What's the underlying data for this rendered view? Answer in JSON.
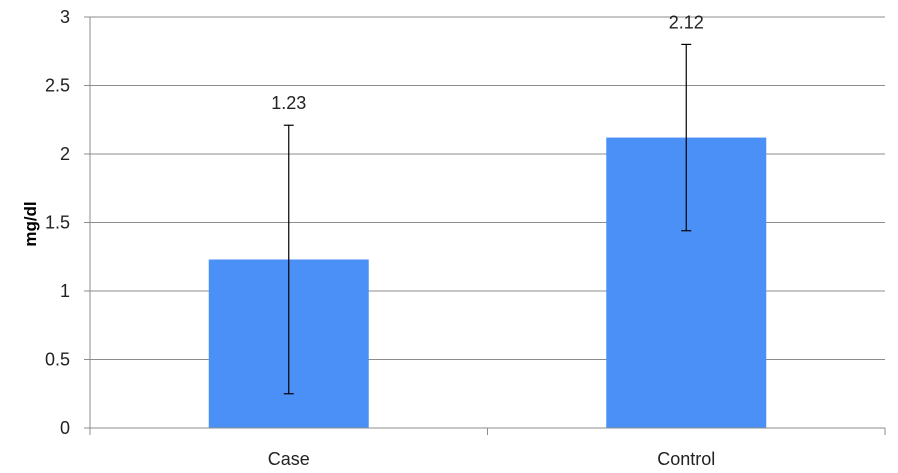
{
  "chart_data": {
    "type": "bar",
    "categories": [
      "Case",
      "Control"
    ],
    "values": [
      1.23,
      2.12
    ],
    "error_low": [
      0.25,
      1.44
    ],
    "error_high": [
      2.21,
      2.8
    ],
    "data_labels": [
      "1.23",
      "2.12"
    ],
    "xlabel": "",
    "ylabel": "mg/dl",
    "ylim": [
      0,
      3
    ],
    "yticks": [
      0,
      0.5,
      1,
      1.5,
      2,
      2.5,
      3
    ],
    "ytick_labels": [
      "0",
      "0.5",
      "1",
      "1.5",
      "2",
      "2.5",
      "3"
    ],
    "grid": true,
    "legend": "none",
    "bar_color": "#4a90f7",
    "grid_color": "#8c8c8c"
  }
}
